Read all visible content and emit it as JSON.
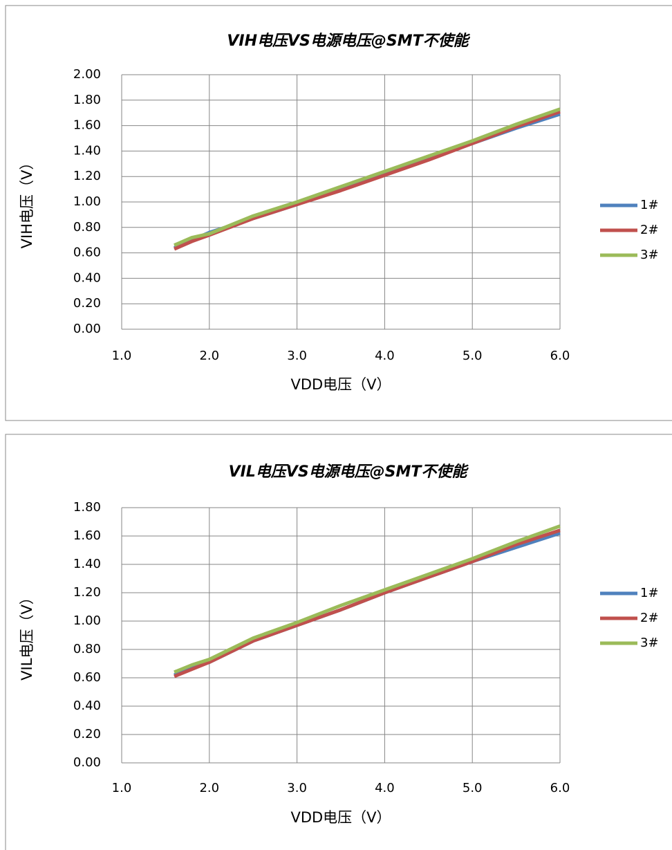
{
  "chart_data": [
    {
      "type": "line",
      "title": "VIH电压VS电源电压@SMT不使能",
      "x_label": "VDD电压（V）",
      "y_label": "VIH电压（V）",
      "x": [
        1.6,
        1.8,
        2.0,
        2.5,
        3.0,
        3.5,
        4.0,
        4.5,
        5.0,
        5.5,
        6.0
      ],
      "series": [
        {
          "name": "1#",
          "color": "#4f81bd",
          "values": [
            0.64,
            0.7,
            0.76,
            0.87,
            0.98,
            1.1,
            1.22,
            1.34,
            1.46,
            1.58,
            1.69
          ]
        },
        {
          "name": "2#",
          "color": "#c0504d",
          "values": [
            0.63,
            0.69,
            0.74,
            0.87,
            0.98,
            1.09,
            1.21,
            1.33,
            1.46,
            1.59,
            1.71
          ]
        },
        {
          "name": "3#",
          "color": "#9bbb59",
          "values": [
            0.66,
            0.72,
            0.75,
            0.89,
            1.0,
            1.12,
            1.24,
            1.36,
            1.48,
            1.61,
            1.73
          ]
        }
      ],
      "xlim": [
        1,
        6
      ],
      "xticks": [
        {
          "value": 1,
          "label": "1.0"
        },
        {
          "value": 2,
          "label": "2.0"
        },
        {
          "value": 3,
          "label": "3.0"
        },
        {
          "value": 4,
          "label": "4.0"
        },
        {
          "value": 5,
          "label": "5.0"
        },
        {
          "value": 6,
          "label": "6.0"
        }
      ],
      "ylim": [
        0,
        2
      ],
      "yticks": [
        {
          "value": 0,
          "label": "0.00"
        },
        {
          "value": 0.2,
          "label": "0.20"
        },
        {
          "value": 0.4,
          "label": "0.40"
        },
        {
          "value": 0.6,
          "label": "0.60"
        },
        {
          "value": 0.8,
          "label": "0.80"
        },
        {
          "value": 1,
          "label": "1.00"
        },
        {
          "value": 1.2,
          "label": "1.20"
        },
        {
          "value": 1.4,
          "label": "1.40"
        },
        {
          "value": 1.6,
          "label": "1.60"
        },
        {
          "value": 1.8,
          "label": "1.80"
        },
        {
          "value": 2,
          "label": "2.00"
        }
      ],
      "grid": true,
      "legend": "right"
    },
    {
      "type": "line",
      "title": "VIL电压VS电源电压@SMT不使能",
      "x_label": "VDD电压（V）",
      "y_label": "VIL电压（V）",
      "x": [
        1.6,
        1.8,
        2.0,
        2.5,
        3.0,
        3.5,
        4.0,
        4.5,
        5.0,
        5.5,
        6.0
      ],
      "series": [
        {
          "name": "1#",
          "color": "#4f81bd",
          "values": [
            0.62,
            0.67,
            0.71,
            0.86,
            0.97,
            1.08,
            1.2,
            1.31,
            1.42,
            1.52,
            1.62
          ]
        },
        {
          "name": "2#",
          "color": "#c0504d",
          "values": [
            0.61,
            0.66,
            0.71,
            0.86,
            0.97,
            1.08,
            1.2,
            1.31,
            1.42,
            1.54,
            1.64
          ]
        },
        {
          "name": "3#",
          "color": "#9bbb59",
          "values": [
            0.64,
            0.69,
            0.73,
            0.88,
            0.99,
            1.11,
            1.22,
            1.33,
            1.44,
            1.56,
            1.67
          ]
        }
      ],
      "xlim": [
        1,
        6
      ],
      "xticks": [
        {
          "value": 1,
          "label": "1.0"
        },
        {
          "value": 2,
          "label": "2.0"
        },
        {
          "value": 3,
          "label": "3.0"
        },
        {
          "value": 4,
          "label": "4.0"
        },
        {
          "value": 5,
          "label": "5.0"
        },
        {
          "value": 6,
          "label": "6.0"
        }
      ],
      "ylim": [
        0,
        1.8
      ],
      "yticks": [
        {
          "value": 0,
          "label": "0.00"
        },
        {
          "value": 0.2,
          "label": "0.20"
        },
        {
          "value": 0.4,
          "label": "0.40"
        },
        {
          "value": 0.6,
          "label": "0.60"
        },
        {
          "value": 0.8,
          "label": "0.80"
        },
        {
          "value": 1,
          "label": "1.00"
        },
        {
          "value": 1.2,
          "label": "1.20"
        },
        {
          "value": 1.4,
          "label": "1.40"
        },
        {
          "value": 1.6,
          "label": "1.60"
        },
        {
          "value": 1.8,
          "label": "1.80"
        }
      ],
      "grid": true,
      "legend": "right"
    }
  ]
}
